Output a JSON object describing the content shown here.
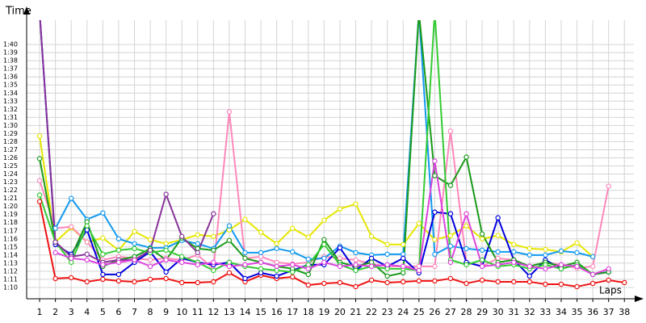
{
  "chart_data": {
    "type": "line",
    "y_label": "Time",
    "x_label": "Laps",
    "grid": true,
    "x": [
      1,
      2,
      3,
      4,
      5,
      6,
      7,
      8,
      9,
      10,
      11,
      12,
      13,
      14,
      15,
      16,
      17,
      18,
      19,
      20,
      21,
      22,
      23,
      24,
      25,
      26,
      27,
      28,
      29,
      30,
      31,
      32,
      33,
      34,
      35,
      36,
      37,
      38
    ],
    "xlim": [
      0.18,
      38.6
    ],
    "xticks": [
      1,
      2,
      3,
      4,
      5,
      6,
      7,
      8,
      9,
      10,
      11,
      12,
      13,
      14,
      15,
      16,
      17,
      18,
      19,
      20,
      21,
      22,
      23,
      24,
      25,
      26,
      27,
      28,
      29,
      30,
      31,
      32,
      33,
      34,
      35,
      36,
      37,
      38
    ],
    "ylim": [
      68.6,
      103
    ],
    "yticks": [
      {
        "value": 70,
        "label": "1:10"
      },
      {
        "value": 71,
        "label": "1:11"
      },
      {
        "value": 72,
        "label": "1:12"
      },
      {
        "value": 73,
        "label": "1:13"
      },
      {
        "value": 74,
        "label": "1:14"
      },
      {
        "value": 75,
        "label": "1:15"
      },
      {
        "value": 76,
        "label": "1:16"
      },
      {
        "value": 77,
        "label": "1:17"
      },
      {
        "value": 78,
        "label": "1:18"
      },
      {
        "value": 79,
        "label": "1:19"
      },
      {
        "value": 80,
        "label": "1:20"
      },
      {
        "value": 81,
        "label": "1:21"
      },
      {
        "value": 82,
        "label": "1:22"
      },
      {
        "value": 83,
        "label": "1:23"
      },
      {
        "value": 84,
        "label": "1:24"
      },
      {
        "value": 85,
        "label": "1:25"
      },
      {
        "value": 86,
        "label": "1:26"
      },
      {
        "value": 87,
        "label": "1:27"
      },
      {
        "value": 88,
        "label": "1:28"
      },
      {
        "value": 89,
        "label": "1:29"
      },
      {
        "value": 90,
        "label": "1:30"
      },
      {
        "value": 91,
        "label": "1:31"
      },
      {
        "value": 92,
        "label": "1:32"
      },
      {
        "value": 93,
        "label": "1:33"
      },
      {
        "value": 94,
        "label": "1:34"
      },
      {
        "value": 95,
        "label": "1:35"
      },
      {
        "value": 96,
        "label": "1:36"
      },
      {
        "value": 97,
        "label": "1:37"
      },
      {
        "value": 98,
        "label": "1:38"
      },
      {
        "value": 99,
        "label": "1:39"
      },
      {
        "value": 100,
        "label": "1:40"
      }
    ],
    "series": [
      {
        "color": "#ee1111",
        "values": [
          80.6,
          71.1,
          71.2,
          70.7,
          71.0,
          70.8,
          70.7,
          71.0,
          71.1,
          70.6,
          70.6,
          70.7,
          71.8,
          70.7,
          71.5,
          71.1,
          71.3,
          70.3,
          70.5,
          70.6,
          70.1,
          70.9,
          70.6,
          70.7,
          70.8,
          70.8,
          71.1,
          70.5,
          70.9,
          70.7,
          70.7,
          70.7,
          70.4,
          70.4,
          70.1,
          70.5,
          70.9,
          70.6
        ]
      },
      {
        "color": "#e6e600",
        "values": [
          88.7,
          75.6,
          77.4,
          75.6,
          76.1,
          74.6,
          76.9,
          75.9,
          75.4,
          75.9,
          76.5,
          76.3,
          77.1,
          78.4,
          76.8,
          75.4,
          77.3,
          76.2,
          78.3,
          79.7,
          80.3,
          76.3,
          75.3,
          75.3,
          77.9,
          75.9,
          76.4,
          77.6,
          76.0,
          76.4,
          75.3,
          74.8,
          74.7,
          74.4,
          75.5,
          73.8,
          null,
          null
        ]
      },
      {
        "color": "#ff88bb",
        "values": [
          83.2,
          77.3,
          77.5,
          75.6,
          73.4,
          73.8,
          73.6,
          73.4,
          73.6,
          73.4,
          74.0,
          72.3,
          91.7,
          73.6,
          73.8,
          73.1,
          72.9,
          73.1,
          73.8,
          73.6,
          73.4,
          72.9,
          72.6,
          72.6,
          72.6,
          72.6,
          89.3,
          73.1,
          72.6,
          73.6,
          73.4,
          72.6,
          73.1,
          72.8,
          72.4,
          72.6,
          82.5,
          null
        ]
      },
      {
        "color": "#1199ee",
        "values": [
          null,
          77.3,
          81.0,
          78.4,
          79.2,
          76.0,
          75.4,
          74.9,
          74.9,
          75.8,
          75.4,
          74.8,
          77.6,
          74.3,
          74.3,
          74.8,
          74.4,
          73.5,
          73.6,
          75.1,
          74.3,
          74.0,
          74.1,
          74.1,
          104,
          74.1,
          75.1,
          74.8,
          74.6,
          74.4,
          74.4,
          74.0,
          74.0,
          74.5,
          74.3,
          73.8,
          null,
          null
        ]
      },
      {
        "color": "#0000dd",
        "values": [
          104,
          75.3,
          74.1,
          77.1,
          71.6,
          71.6,
          73.1,
          74.4,
          71.9,
          73.6,
          73.1,
          72.8,
          73.1,
          71.1,
          71.8,
          71.4,
          72.1,
          72.8,
          72.8,
          74.9,
          72.1,
          73.6,
          72.6,
          73.6,
          71.8,
          79.3,
          79.1,
          73.1,
          72.6,
          78.6,
          73.4,
          71.4,
          73.4,
          72.3,
          72.8,
          71.6,
          71.9,
          null
        ]
      },
      {
        "color": "#1a9a1a",
        "values": [
          85.9,
          75.6,
          73.8,
          78.1,
          72.6,
          73.4,
          73.8,
          74.8,
          73.4,
          76.1,
          74.8,
          74.6,
          75.8,
          73.6,
          73.1,
          72.6,
          72.3,
          71.6,
          75.9,
          73.1,
          72.6,
          73.1,
          71.4,
          71.8,
          104,
          83.8,
          82.6,
          86.1,
          76.6,
          73.1,
          73.4,
          72.6,
          73.1,
          72.6,
          73.1,
          71.6,
          71.9,
          null
        ]
      },
      {
        "color": "#33cc33",
        "values": [
          81.4,
          75.6,
          73.1,
          77.6,
          74.1,
          74.6,
          74.8,
          74.3,
          74.6,
          73.8,
          73.1,
          72.1,
          73.1,
          72.6,
          72.3,
          72.1,
          71.9,
          72.8,
          75.3,
          72.8,
          72.1,
          72.6,
          72.3,
          72.3,
          72.1,
          104,
          73.4,
          72.8,
          73.4,
          72.6,
          72.8,
          72.3,
          72.8,
          72.3,
          72.8,
          71.6,
          null,
          null
        ]
      },
      {
        "color": "#883399",
        "values": [
          104,
          75.6,
          73.8,
          74.1,
          73.1,
          73.4,
          73.4,
          74.6,
          81.5,
          76.3,
          74.3,
          79.1,
          null,
          null,
          null,
          null,
          null,
          null,
          null,
          null,
          null,
          null,
          null,
          null,
          null,
          null,
          null,
          null,
          null,
          null,
          null,
          null,
          null,
          null,
          null,
          null,
          null,
          null
        ]
      },
      {
        "color": "#dd44dd",
        "values": [
          null,
          74.3,
          73.6,
          73.4,
          72.8,
          73.1,
          73.4,
          72.6,
          73.4,
          73.1,
          72.8,
          73.1,
          72.6,
          72.8,
          73.1,
          72.6,
          72.8,
          72.3,
          73.1,
          72.6,
          72.8,
          72.6,
          72.8,
          72.6,
          72.1,
          85.6,
          73.1,
          79.1,
          72.6,
          72.8,
          73.1,
          72.6,
          72.3,
          72.8,
          72.6,
          71.6,
          72.3,
          null
        ]
      }
    ]
  }
}
